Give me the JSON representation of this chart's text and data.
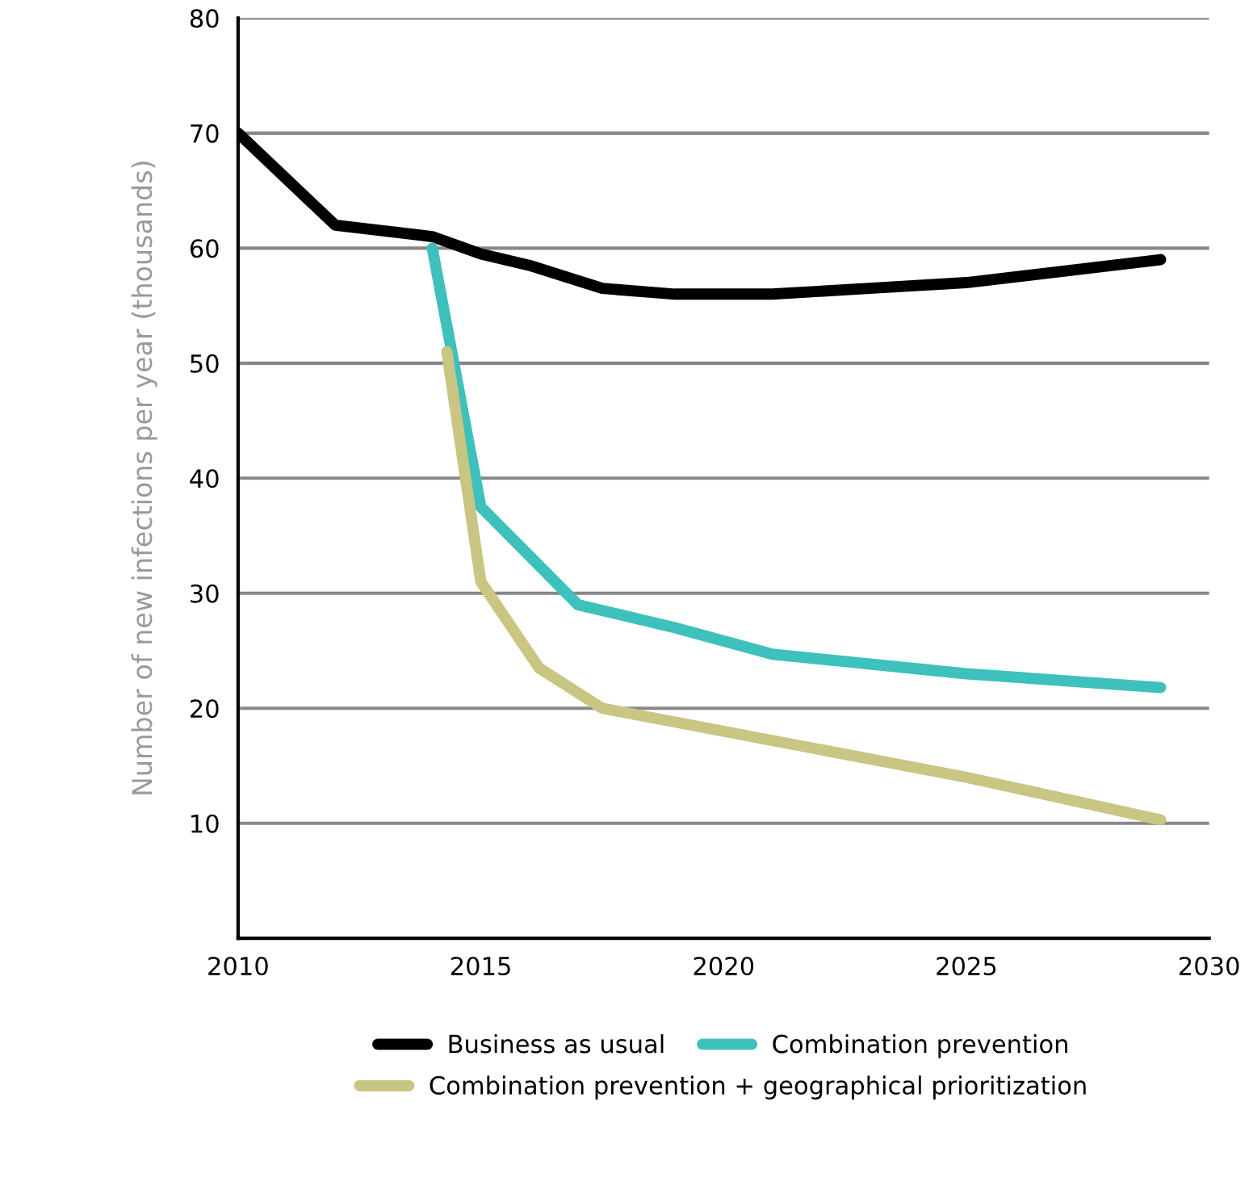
{
  "chart_data": {
    "type": "line",
    "ylabel": "Number of new infections per year (thousands)",
    "xlim": [
      2010,
      2030
    ],
    "xticks": [
      2010,
      2015,
      2020,
      2025,
      2030
    ],
    "ylim": [
      0,
      80
    ],
    "yticks": [
      {
        "value": 0,
        "label": null
      },
      10,
      20,
      30,
      40,
      50,
      60,
      70,
      80
    ],
    "grid": "y",
    "legend": "bottom",
    "marker": "none",
    "line_style": "solid",
    "series": [
      {
        "name": "Business as usual",
        "color": "#000000",
        "x": [
          2010,
          2012,
          2014,
          2015,
          2016,
          2017.5,
          2019,
          2021,
          2023,
          2025,
          2027,
          2029
        ],
        "values": [
          70,
          62,
          61,
          59.5,
          58.5,
          56.5,
          56,
          56,
          56.5,
          57,
          58,
          59
        ]
      },
      {
        "name": "Combination prevention",
        "color": "#3ec1bc",
        "x": [
          2014,
          2015,
          2017,
          2019,
          2021,
          2025,
          2029
        ],
        "values": [
          60,
          37.5,
          29,
          27,
          24.7,
          23,
          21.8
        ]
      },
      {
        "name": "Combination prevention + geographical prioritization",
        "color": "#c9c583",
        "x": [
          2014.3,
          2015,
          2016.2,
          2017.5,
          2020,
          2025,
          2029
        ],
        "values": [
          51,
          31,
          23.5,
          20,
          18,
          14,
          10.3
        ]
      }
    ]
  }
}
